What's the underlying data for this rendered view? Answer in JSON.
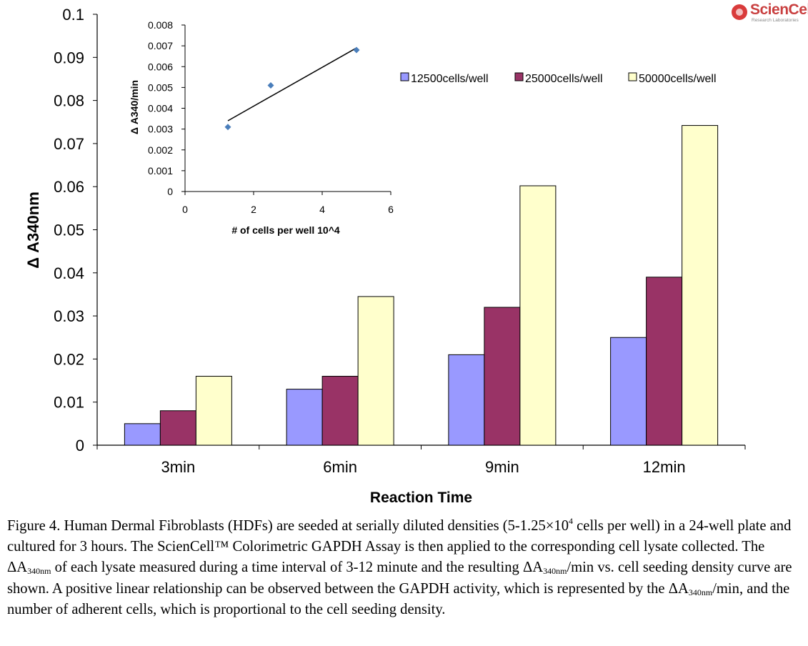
{
  "logo": {
    "name": "ScienCell",
    "sub": "Research Laboratories"
  },
  "chart_data": [
    {
      "type": "bar",
      "title": "",
      "xlabel": "Reaction Time",
      "ylabel": "Δ A340nm",
      "categories": [
        "3min",
        "6min",
        "9min",
        "12min"
      ],
      "ylim": [
        0,
        0.1
      ],
      "yticks": [
        "0",
        "0.01",
        "0.02",
        "0.03",
        "0.04",
        "0.05",
        "0.06",
        "0.07",
        "0.08",
        "0.09",
        "0.1"
      ],
      "grid": false,
      "legend_position": "top-right",
      "series": [
        {
          "name": "12500cells/well",
          "color": "#9999ff",
          "values": [
            0.005,
            0.013,
            0.021,
            0.025
          ]
        },
        {
          "name": "25000cells/well",
          "color": "#993366",
          "values": [
            0.008,
            0.016,
            0.032,
            0.039
          ]
        },
        {
          "name": "50000cells/well",
          "color": "#ffffcc",
          "values": [
            0.016,
            0.0345,
            0.0602,
            0.0742
          ]
        }
      ]
    },
    {
      "type": "scatter",
      "title": "",
      "xlabel": "# of cells per well 10^4",
      "ylabel": "Δ A340/min",
      "xlim": [
        0,
        6
      ],
      "ylim": [
        0,
        0.008
      ],
      "xticks": [
        "0",
        "2",
        "4",
        "6"
      ],
      "yticks": [
        "0",
        "0.001",
        "0.002",
        "0.003",
        "0.004",
        "0.005",
        "0.006",
        "0.007",
        "0.008"
      ],
      "grid": false,
      "point_color": "#4a7ebb",
      "points": [
        {
          "x": 1.25,
          "y": 0.0031
        },
        {
          "x": 2.5,
          "y": 0.0051
        },
        {
          "x": 5,
          "y": 0.0068
        }
      ],
      "trendline": [
        {
          "x": 1.25,
          "y": 0.0034
        },
        {
          "x": 5,
          "y": 0.0069
        }
      ]
    }
  ],
  "caption": {
    "p1": "Figure 4. Human Dermal Fibroblasts (HDFs) are seeded at serially diluted densities (5-1.25×10",
    "p1_sup": "4",
    "p2": " cells per well) in a 24-well plate and cultured for 3 hours. The ScienCell™ Colorimetric GAPDH Assay is then applied to the corresponding cell lysate collected. The ΔA",
    "sub1": "340nm",
    "p3": " of each lysate measured during a time interval of 3-12 minute and the resulting ΔA",
    "sub2": "340nm",
    "p4": "/min vs. cell seeding density curve are shown. A positive linear relationship can be observed between the GAPDH activity, which is represented by the ΔA",
    "sub3": "340nm",
    "p5": "/min, and the number of adherent cells, which is proportional to the cell seeding density."
  }
}
